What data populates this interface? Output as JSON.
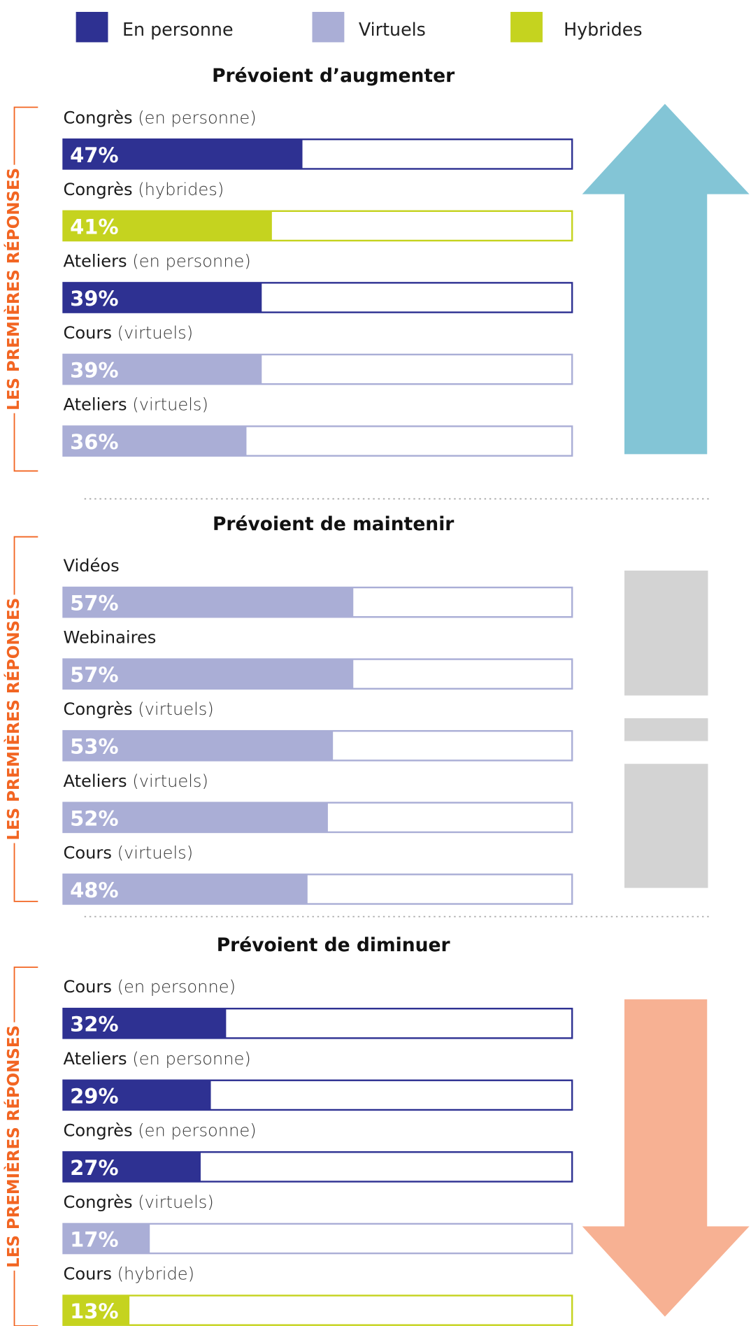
{
  "chart_data": {
    "type": "bar",
    "xlim": [
      0,
      100
    ],
    "legend": [
      {
        "name": "En personne",
        "color": "#2e3192"
      },
      {
        "name": "Virtuels",
        "color": "#aaaed6"
      },
      {
        "name": "Hybrides",
        "color": "#c5d31f"
      }
    ],
    "groups": [
      {
        "title": "Prévoient d’augmenter",
        "side_label": "LES PREMIÈRES RÉPONSES",
        "items": [
          {
            "label": "Congrès",
            "qualifier": "(en personne)",
            "color": "#2e3192",
            "value": 47,
            "value_label": "47%"
          },
          {
            "label": "Congrès",
            "qualifier": "(hybrides)",
            "color": "#c5d31f",
            "value": 41,
            "value_label": "41%"
          },
          {
            "label": "Ateliers",
            "qualifier": "(en personne)",
            "color": "#2e3192",
            "value": 39,
            "value_label": "39%"
          },
          {
            "label": "Cours",
            "qualifier": "(virtuels)",
            "color": "#aaaed6",
            "value": 39,
            "value_label": "39%"
          },
          {
            "label": "Ateliers",
            "qualifier": "(virtuels)",
            "color": "#aaaed6",
            "value": 36,
            "value_label": "36%"
          }
        ]
      },
      {
        "title": "Prévoient de maintenir",
        "side_label": "LES PREMIÈRES RÉPONSES",
        "items": [
          {
            "label": "Vidéos",
            "color": "#aaaed6",
            "value": 57,
            "value_label": "57%"
          },
          {
            "label": "Webinaires",
            "color": "#aaaed6",
            "value": 57,
            "value_label": "57%"
          },
          {
            "label": "Congrès",
            "qualifier": "(virtuels)",
            "color": "#aaaed6",
            "value": 53,
            "value_label": "53%"
          },
          {
            "label": "Ateliers",
            "qualifier": "(virtuels)",
            "color": "#aaaed6",
            "value": 52,
            "value_label": "52%"
          },
          {
            "label": "Cours",
            "qualifier": "(virtuels)",
            "color": "#aaaed6",
            "value": 48,
            "value_label": "48%"
          }
        ]
      },
      {
        "title": "Prévoient de diminuer",
        "side_label": "LES PREMIÈRES RÉPONSES",
        "items": [
          {
            "label": "Cours",
            "qualifier": "(en personne)",
            "color": "#2e3192",
            "value": 32,
            "value_label": "32%"
          },
          {
            "label": "Ateliers",
            "qualifier": "(en personne)",
            "color": "#2e3192",
            "value": 29,
            "value_label": "29%"
          },
          {
            "label": "Congrès",
            "qualifier": "(en personne)",
            "color": "#2e3192",
            "value": 27,
            "value_label": "27%"
          },
          {
            "label": "Congrès",
            "qualifier": "(virtuels)",
            "color": "#aaaed6",
            "value": 17,
            "value_label": "17%"
          },
          {
            "label": "Cours",
            "qualifier": "(hybride)",
            "color": "#c5d31f",
            "value": 13,
            "value_label": "13%"
          }
        ]
      }
    ]
  }
}
